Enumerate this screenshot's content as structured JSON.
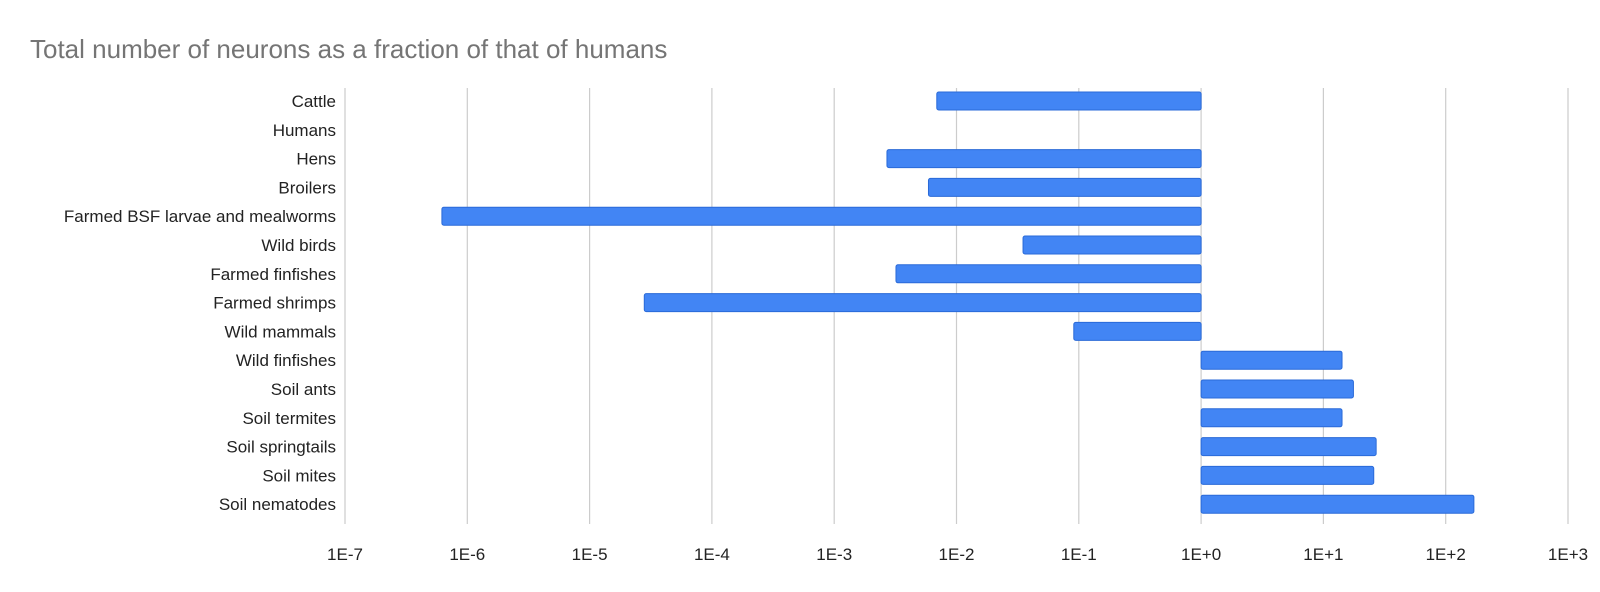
{
  "chart_data": {
    "type": "bar",
    "orientation": "horizontal",
    "title": "Total number of neurons as a fraction of that of humans",
    "xlabel": "",
    "ylabel": "",
    "x_scale": "log",
    "xlim": [
      1e-07,
      1000
    ],
    "x_ticks": [
      1e-07,
      1e-06,
      1e-05,
      0.0001,
      0.001,
      0.01,
      0.1,
      1,
      10,
      100,
      1000
    ],
    "x_tick_labels": [
      "1E-7",
      "1E-6",
      "1E-5",
      "1E-4",
      "1E-3",
      "1E-2",
      "1E-1",
      "1E+0",
      "1E+1",
      "1E+2",
      "1E+3"
    ],
    "bar_baseline": 1,
    "grid": true,
    "legend": "none",
    "bar_color": "#4285f4",
    "bar_edge_color": "#2a6ad8",
    "categories": [
      "Cattle",
      "Humans",
      "Hens",
      "Broilers",
      "Farmed BSF larvae and mealworms",
      "Wild birds",
      "Farmed finfishes",
      "Farmed shrimps",
      "Wild mammals",
      "Wild finfishes",
      "Soil ants",
      "Soil termites",
      "Soil springtails",
      "Soil mites",
      "Soil nematodes"
    ],
    "values": [
      0.0069,
      1,
      0.0027,
      0.0059,
      6.2e-07,
      0.035,
      0.0032,
      2.8e-05,
      0.091,
      14.2,
      17.6,
      14.2,
      27,
      25.8,
      170
    ]
  }
}
